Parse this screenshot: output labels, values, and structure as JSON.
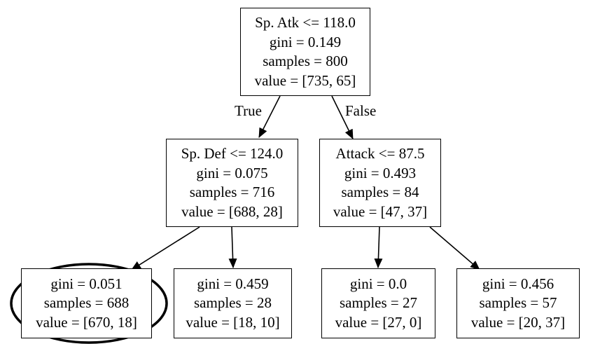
{
  "tree": {
    "root": {
      "condition": "Sp. Atk <= 118.0",
      "gini": "gini = 0.149",
      "samples": "samples = 800",
      "value": "value = [735, 65]"
    },
    "left": {
      "condition": "Sp. Def <= 124.0",
      "gini": "gini = 0.075",
      "samples": "samples = 716",
      "value": "value = [688, 28]"
    },
    "right": {
      "condition": "Attack <= 87.5",
      "gini": "gini = 0.493",
      "samples": "samples = 84",
      "value": "value = [47, 37]"
    },
    "leaf_ll": {
      "gini": "gini = 0.051",
      "samples": "samples = 688",
      "value": "value = [670, 18]"
    },
    "leaf_lr": {
      "gini": "gini = 0.459",
      "samples": "samples = 28",
      "value": "value = [18, 10]"
    },
    "leaf_rl": {
      "gini": "gini = 0.0",
      "samples": "samples = 27",
      "value": "value = [27, 0]"
    },
    "leaf_rr": {
      "gini": "gini = 0.456",
      "samples": "samples = 57",
      "value": "value = [20, 37]"
    }
  },
  "edge_labels": {
    "true_label": "True",
    "false_label": "False"
  },
  "highlight": {
    "target": "leaf_ll",
    "shape": "ellipse"
  }
}
